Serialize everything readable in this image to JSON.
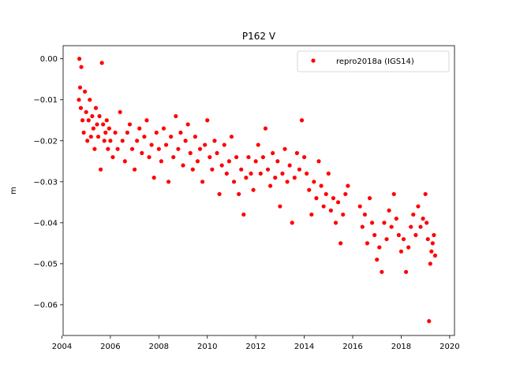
{
  "chart_data": {
    "type": "scatter",
    "title": "P162 V",
    "xlabel": "",
    "ylabel": "m",
    "xlim": [
      2004.05,
      2020.2
    ],
    "ylim": [
      -0.0675,
      0.0032
    ],
    "x_ticks": [
      2004,
      2006,
      2008,
      2010,
      2012,
      2014,
      2016,
      2018,
      2020
    ],
    "x_tick_labels": [
      "2004",
      "2006",
      "2008",
      "2010",
      "2012",
      "2014",
      "2016",
      "2018",
      "2020"
    ],
    "y_ticks": [
      0.0,
      -0.01,
      -0.02,
      -0.03,
      -0.04,
      -0.05,
      -0.06
    ],
    "y_tick_labels": [
      "0.00",
      "−0.01",
      "−0.02",
      "−0.03",
      "−0.04",
      "−0.05",
      "−0.06"
    ],
    "grid": false,
    "legend": {
      "position": "top-right",
      "entries": [
        "repro2018a (IGS14)"
      ]
    },
    "series": [
      {
        "name": "repro2018a (IGS14)",
        "color": "#ff0000",
        "marker": "circle",
        "points": [
          [
            2004.7,
            -0.01
          ],
          [
            2004.72,
            0.0
          ],
          [
            2004.75,
            -0.007
          ],
          [
            2004.78,
            -0.012
          ],
          [
            2004.8,
            -0.002
          ],
          [
            2004.85,
            -0.015
          ],
          [
            2004.9,
            -0.018
          ],
          [
            2004.95,
            -0.008
          ],
          [
            2005.0,
            -0.013
          ],
          [
            2005.05,
            -0.02
          ],
          [
            2005.1,
            -0.015
          ],
          [
            2005.15,
            -0.01
          ],
          [
            2005.2,
            -0.019
          ],
          [
            2005.25,
            -0.014
          ],
          [
            2005.3,
            -0.017
          ],
          [
            2005.35,
            -0.022
          ],
          [
            2005.4,
            -0.012
          ],
          [
            2005.45,
            -0.016
          ],
          [
            2005.5,
            -0.019
          ],
          [
            2005.55,
            -0.014
          ],
          [
            2005.6,
            -0.027
          ],
          [
            2005.65,
            -0.001
          ],
          [
            2005.7,
            -0.016
          ],
          [
            2005.75,
            -0.02
          ],
          [
            2005.8,
            -0.018
          ],
          [
            2005.85,
            -0.015
          ],
          [
            2005.9,
            -0.022
          ],
          [
            2005.95,
            -0.017
          ],
          [
            2006.0,
            -0.02
          ],
          [
            2006.1,
            -0.024
          ],
          [
            2006.2,
            -0.018
          ],
          [
            2006.3,
            -0.022
          ],
          [
            2006.4,
            -0.013
          ],
          [
            2006.5,
            -0.02
          ],
          [
            2006.6,
            -0.025
          ],
          [
            2006.7,
            -0.018
          ],
          [
            2006.8,
            -0.016
          ],
          [
            2006.9,
            -0.022
          ],
          [
            2007.0,
            -0.027
          ],
          [
            2007.1,
            -0.02
          ],
          [
            2007.2,
            -0.017
          ],
          [
            2007.3,
            -0.023
          ],
          [
            2007.4,
            -0.019
          ],
          [
            2007.5,
            -0.015
          ],
          [
            2007.6,
            -0.024
          ],
          [
            2007.7,
            -0.021
          ],
          [
            2007.8,
            -0.029
          ],
          [
            2007.9,
            -0.018
          ],
          [
            2008.0,
            -0.022
          ],
          [
            2008.1,
            -0.025
          ],
          [
            2008.2,
            -0.017
          ],
          [
            2008.3,
            -0.021
          ],
          [
            2008.4,
            -0.03
          ],
          [
            2008.5,
            -0.019
          ],
          [
            2008.6,
            -0.024
          ],
          [
            2008.7,
            -0.014
          ],
          [
            2008.8,
            -0.022
          ],
          [
            2008.9,
            -0.018
          ],
          [
            2009.0,
            -0.026
          ],
          [
            2009.1,
            -0.02
          ],
          [
            2009.2,
            -0.016
          ],
          [
            2009.3,
            -0.023
          ],
          [
            2009.4,
            -0.027
          ],
          [
            2009.5,
            -0.019
          ],
          [
            2009.6,
            -0.025
          ],
          [
            2009.7,
            -0.022
          ],
          [
            2009.8,
            -0.03
          ],
          [
            2009.9,
            -0.021
          ],
          [
            2010.0,
            -0.015
          ],
          [
            2010.1,
            -0.024
          ],
          [
            2010.2,
            -0.027
          ],
          [
            2010.3,
            -0.02
          ],
          [
            2010.4,
            -0.023
          ],
          [
            2010.5,
            -0.033
          ],
          [
            2010.6,
            -0.026
          ],
          [
            2010.7,
            -0.021
          ],
          [
            2010.8,
            -0.028
          ],
          [
            2010.9,
            -0.025
          ],
          [
            2011.0,
            -0.019
          ],
          [
            2011.1,
            -0.03
          ],
          [
            2011.2,
            -0.024
          ],
          [
            2011.3,
            -0.033
          ],
          [
            2011.4,
            -0.027
          ],
          [
            2011.5,
            -0.038
          ],
          [
            2011.6,
            -0.029
          ],
          [
            2011.7,
            -0.024
          ],
          [
            2011.8,
            -0.028
          ],
          [
            2011.9,
            -0.032
          ],
          [
            2012.0,
            -0.025
          ],
          [
            2012.1,
            -0.021
          ],
          [
            2012.2,
            -0.028
          ],
          [
            2012.3,
            -0.024
          ],
          [
            2012.4,
            -0.017
          ],
          [
            2012.5,
            -0.027
          ],
          [
            2012.6,
            -0.031
          ],
          [
            2012.7,
            -0.023
          ],
          [
            2012.8,
            -0.029
          ],
          [
            2012.9,
            -0.025
          ],
          [
            2013.0,
            -0.036
          ],
          [
            2013.1,
            -0.028
          ],
          [
            2013.2,
            -0.022
          ],
          [
            2013.3,
            -0.03
          ],
          [
            2013.4,
            -0.026
          ],
          [
            2013.5,
            -0.04
          ],
          [
            2013.6,
            -0.029
          ],
          [
            2013.7,
            -0.023
          ],
          [
            2013.8,
            -0.027
          ],
          [
            2013.9,
            -0.015
          ],
          [
            2014.0,
            -0.024
          ],
          [
            2014.1,
            -0.028
          ],
          [
            2014.2,
            -0.032
          ],
          [
            2014.3,
            -0.038
          ],
          [
            2014.4,
            -0.03
          ],
          [
            2014.5,
            -0.034
          ],
          [
            2014.6,
            -0.025
          ],
          [
            2014.7,
            -0.031
          ],
          [
            2014.8,
            -0.036
          ],
          [
            2014.9,
            -0.033
          ],
          [
            2015.0,
            -0.028
          ],
          [
            2015.1,
            -0.037
          ],
          [
            2015.2,
            -0.034
          ],
          [
            2015.3,
            -0.04
          ],
          [
            2015.4,
            -0.035
          ],
          [
            2015.5,
            -0.045
          ],
          [
            2015.6,
            -0.038
          ],
          [
            2015.7,
            -0.033
          ],
          [
            2015.8,
            -0.031
          ],
          [
            2016.3,
            -0.036
          ],
          [
            2016.4,
            -0.041
          ],
          [
            2016.5,
            -0.038
          ],
          [
            2016.6,
            -0.045
          ],
          [
            2016.7,
            -0.034
          ],
          [
            2016.8,
            -0.04
          ],
          [
            2016.9,
            -0.043
          ],
          [
            2017.0,
            -0.049
          ],
          [
            2017.1,
            -0.046
          ],
          [
            2017.2,
            -0.052
          ],
          [
            2017.3,
            -0.04
          ],
          [
            2017.4,
            -0.044
          ],
          [
            2017.5,
            -0.037
          ],
          [
            2017.6,
            -0.041
          ],
          [
            2017.7,
            -0.033
          ],
          [
            2017.8,
            -0.039
          ],
          [
            2017.9,
            -0.043
          ],
          [
            2018.0,
            -0.047
          ],
          [
            2018.1,
            -0.044
          ],
          [
            2018.2,
            -0.052
          ],
          [
            2018.3,
            -0.046
          ],
          [
            2018.4,
            -0.041
          ],
          [
            2018.5,
            -0.038
          ],
          [
            2018.6,
            -0.043
          ],
          [
            2018.7,
            -0.036
          ],
          [
            2018.8,
            -0.041
          ],
          [
            2018.9,
            -0.039
          ],
          [
            2019.0,
            -0.033
          ],
          [
            2019.05,
            -0.04
          ],
          [
            2019.1,
            -0.044
          ],
          [
            2019.15,
            -0.064
          ],
          [
            2019.2,
            -0.05
          ],
          [
            2019.25,
            -0.047
          ],
          [
            2019.3,
            -0.045
          ],
          [
            2019.35,
            -0.043
          ],
          [
            2019.4,
            -0.048
          ]
        ]
      }
    ]
  }
}
